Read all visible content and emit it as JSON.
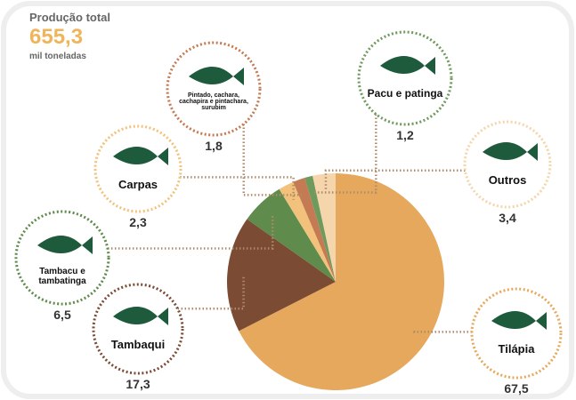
{
  "chart_data": {
    "type": "pie",
    "title": "Produção total",
    "total": {
      "value": 655.3,
      "label": "655,3"
    },
    "total_unit": "mil toneladas",
    "categories": [
      "Tilápia",
      "Tambaqui",
      "Tambacu e tambatinga",
      "Carpas",
      "Pintado, cachara, cachapira e pintachara, surubim",
      "Pacu e patinga",
      "Outros"
    ],
    "values": [
      67.5,
      17.3,
      6.5,
      2.3,
      1.8,
      1.2,
      3.4
    ],
    "value_labels": [
      "67,5",
      "17,3",
      "6,5",
      "2,3",
      "1,8",
      "1,2",
      "3,4"
    ],
    "colors": [
      "#e6a85c",
      "#7b4b34",
      "#5f8b4c",
      "#f2c27c",
      "#c47a52",
      "#6f9a5e",
      "#f5d5ab"
    ]
  }
}
